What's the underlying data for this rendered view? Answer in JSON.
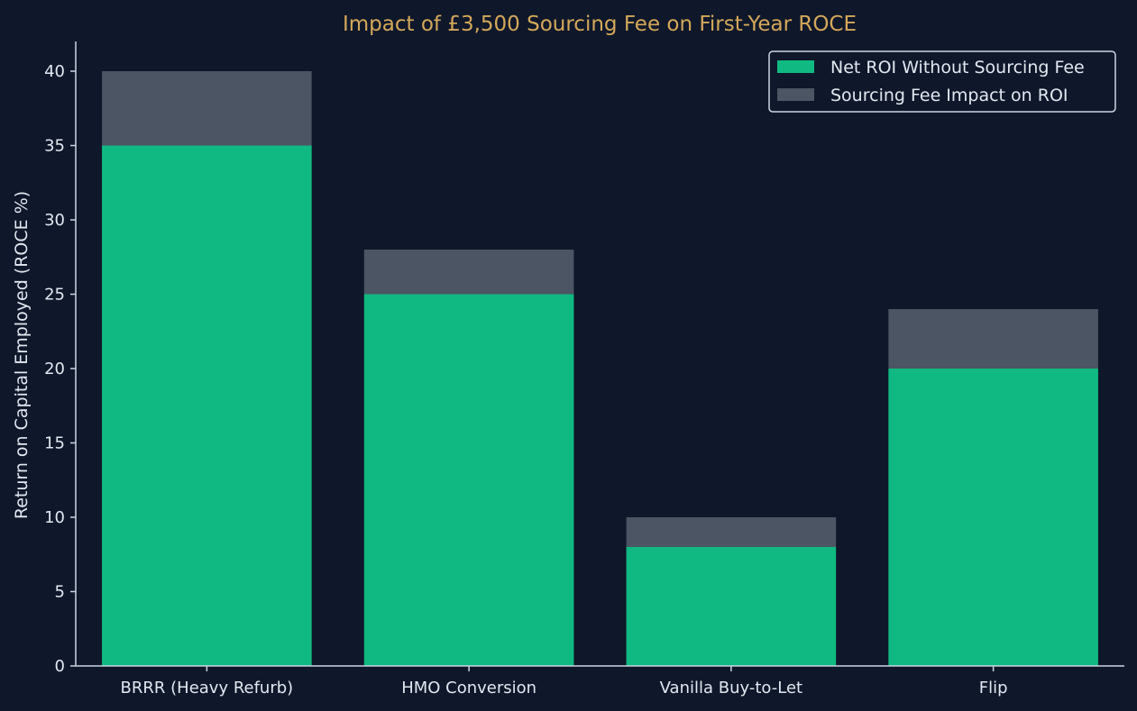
{
  "chart_data": {
    "type": "bar",
    "stacked": true,
    "title": "Impact of £3,500 Sourcing Fee on First-Year ROCE",
    "xlabel": "",
    "ylabel": "Return on Capital Employed (ROCE %)",
    "ylim": [
      0,
      42
    ],
    "yticks": [
      0,
      5,
      10,
      15,
      20,
      25,
      30,
      35,
      40
    ],
    "categories": [
      "BRRR (Heavy Refurb)",
      "HMO Conversion",
      "Vanilla Buy-to-Let",
      "Flip"
    ],
    "series": [
      {
        "name": "Net ROI Without Sourcing Fee",
        "values": [
          35,
          25,
          8,
          20
        ],
        "color": "#10b981"
      },
      {
        "name": "Sourcing Fee Impact on ROI",
        "values": [
          5,
          3,
          2,
          4
        ],
        "color": "#4b5563"
      }
    ],
    "grid": false,
    "legend_position": "top-right"
  },
  "colors": {
    "background": "#0f172a",
    "axis": "#cbd5e1",
    "text": "#e2e8f0",
    "title": "#d4a85a"
  }
}
